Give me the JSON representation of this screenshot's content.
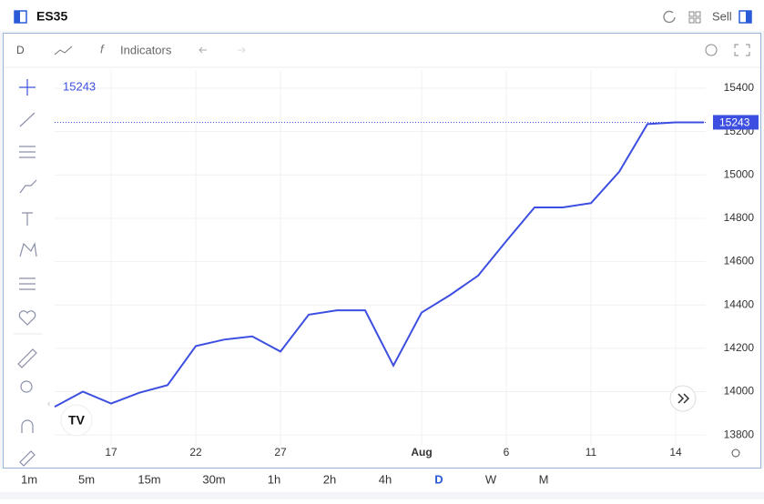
{
  "header": {
    "symbol": "ES35",
    "sell": "Sell"
  },
  "toolbar": {
    "interval": "D",
    "indicators": "Indicators"
  },
  "chart_data": {
    "type": "line",
    "color": "#3d4fe0",
    "grid": true,
    "categories": [
      null,
      null,
      "17",
      null,
      null,
      "22",
      null,
      null,
      "27",
      null,
      null,
      null,
      null,
      "Aug",
      null,
      null,
      "6",
      null,
      null,
      "11",
      null,
      null,
      "14",
      null
    ],
    "values": [
      13930,
      14000,
      13945,
      13995,
      14030,
      14210,
      14240,
      14255,
      14185,
      14355,
      14375,
      14375,
      14120,
      14365,
      14445,
      14535,
      14695,
      14850,
      14850,
      14870,
      15015,
      15235,
      15243,
      15243
    ],
    "ylim": [
      13750,
      15480
    ],
    "yticks": [
      13800,
      14000,
      14200,
      14400,
      14600,
      14800,
      15000,
      15200,
      15400
    ]
  },
  "timeframes": [
    "1m",
    "5m",
    "15m",
    "30m",
    "1h",
    "2h",
    "4h",
    "D",
    "W",
    "M"
  ],
  "active_timeframe": 7
}
